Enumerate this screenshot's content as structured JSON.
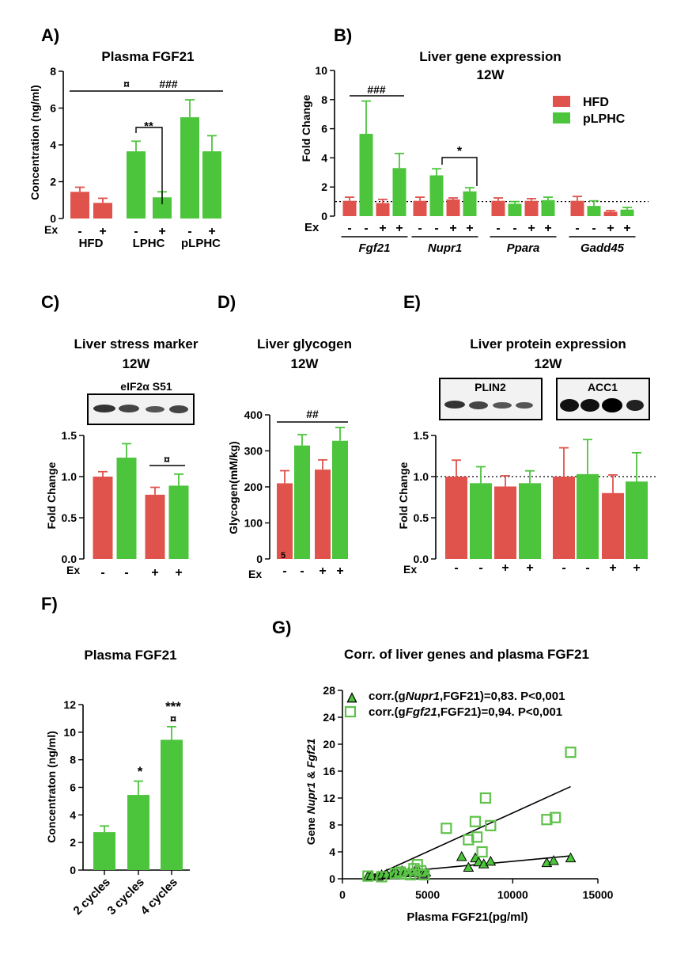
{
  "colors": {
    "hfd": "#e0524c",
    "plphc": "#4cc43c",
    "plphc_edge": "#3fa832",
    "axis": "#000000",
    "scatter_open": "#5fc24a"
  },
  "legend_b": [
    "HFD",
    "pLPHC"
  ],
  "chart_data": [
    {
      "panel": "A)",
      "type": "bar",
      "title": "Plasma FGF21",
      "ylabel": "Concentration (ng/ml)",
      "ylim": [
        0,
        8
      ],
      "yticks": [
        "0",
        "2",
        "4",
        "6",
        "8"
      ],
      "ex_label": "Ex",
      "values": [
        1.45,
        0.85,
        3.65,
        1.15,
        5.5,
        3.65
      ],
      "errors": [
        0.25,
        0.25,
        0.55,
        0.3,
        0.95,
        0.85
      ],
      "colors": [
        "hfd",
        "hfd",
        "plphc",
        "plphc",
        "plphc",
        "plphc"
      ],
      "ex": [
        "-",
        "+",
        "-",
        "+",
        "-",
        "+"
      ],
      "groups": [
        "HFD",
        "LPHC",
        "pLPHC"
      ],
      "annotations": [
        "¤",
        "###",
        "**"
      ]
    },
    {
      "panel": "B)",
      "type": "bar",
      "title": "Liver gene expression",
      "subtitle": "12W",
      "ylabel": "Fold Change",
      "ylim": [
        0,
        10
      ],
      "yticks": [
        "0",
        "2",
        "4",
        "6",
        "8",
        "10"
      ],
      "ex_label": "Ex",
      "genes": [
        "Fgf21",
        "Nupr1",
        "Ppara",
        "Gadd45"
      ],
      "ex": [
        "-",
        "-",
        "+",
        "+"
      ],
      "series_order": [
        "HFD",
        "pLPHC",
        "HFD",
        "pLPHC"
      ],
      "values": [
        [
          1.05,
          5.65,
          0.9,
          3.3
        ],
        [
          1.05,
          2.8,
          1.15,
          1.7
        ],
        [
          1.05,
          0.85,
          1.05,
          1.1
        ],
        [
          1.05,
          0.7,
          0.3,
          0.45
        ]
      ],
      "errors": [
        [
          0.25,
          2.25,
          0.25,
          1.0
        ],
        [
          0.25,
          0.45,
          0.1,
          0.25
        ],
        [
          0.2,
          0.15,
          0.15,
          0.2
        ],
        [
          0.3,
          0.35,
          0.08,
          0.15
        ]
      ],
      "reference_line": 1,
      "annotations": [
        "###",
        "*"
      ]
    },
    {
      "panel": "C)",
      "type": "bar",
      "title": "Liver stress marker",
      "subtitle": "12W",
      "blot_label": "eIF2α  S51",
      "ylabel": "Fold Change",
      "ylim": [
        0,
        1.5
      ],
      "yticks": [
        "0.0",
        "0.5",
        "1.0",
        "1.5"
      ],
      "ex_label": "Ex",
      "values": [
        1.0,
        1.23,
        0.78,
        0.89
      ],
      "errors": [
        0.06,
        0.17,
        0.09,
        0.14
      ],
      "colors": [
        "hfd",
        "plphc",
        "hfd",
        "plphc"
      ],
      "ex": [
        "-",
        "-",
        "+",
        "+"
      ],
      "annotations": [
        "¤"
      ]
    },
    {
      "panel": "D)",
      "type": "bar",
      "title": "Liver glycogen",
      "subtitle": "12W",
      "ylabel": "Glycogen(mM/kg)",
      "ylim": [
        0,
        400
      ],
      "yticks": [
        "0",
        "100",
        "200",
        "300",
        "400"
      ],
      "ex_label": "Ex",
      "values": [
        210,
        315,
        248,
        328
      ],
      "errors": [
        35,
        30,
        27,
        37
      ],
      "colors": [
        "hfd",
        "plphc",
        "hfd",
        "plphc"
      ],
      "ex": [
        "-",
        "-",
        "+",
        "+"
      ],
      "annotations": [
        "##",
        "5"
      ]
    },
    {
      "panel": "E)",
      "type": "bar",
      "title": "Liver protein expression",
      "subtitle": "12W",
      "blot_labels": [
        "PLIN2",
        "ACC1"
      ],
      "ylabel": "Fold Change",
      "ylim": [
        0,
        1.5
      ],
      "yticks": [
        "0.0",
        "0.5",
        "1.0",
        "1.5"
      ],
      "ex_label": "Ex",
      "values": [
        [
          1.0,
          0.92,
          0.88,
          0.92
        ],
        [
          1.0,
          1.03,
          0.8,
          0.94
        ]
      ],
      "errors": [
        [
          0.2,
          0.2,
          0.13,
          0.15
        ],
        [
          0.35,
          0.42,
          0.22,
          0.35
        ]
      ],
      "colors": [
        "hfd",
        "plphc",
        "hfd",
        "plphc"
      ],
      "ex": [
        "-",
        "-",
        "+",
        "+"
      ],
      "reference_line": 1
    },
    {
      "panel": "F)",
      "type": "bar",
      "title": "Plasma FGF21",
      "ylabel": "Concentraton (ng/ml)",
      "ylim": [
        0,
        12
      ],
      "yticks": [
        "0",
        "2",
        "4",
        "6",
        "8",
        "10",
        "12"
      ],
      "categories": [
        "2 cycles",
        "3 cycles",
        "4 cycles"
      ],
      "values": [
        2.75,
        5.45,
        9.45
      ],
      "errors": [
        0.45,
        1.0,
        0.95
      ],
      "annotations": [
        "*",
        "***",
        "¤"
      ]
    },
    {
      "panel": "G)",
      "type": "scatter",
      "title": "Corr. of liver genes and plasma FGF21",
      "xlabel": "Plasma FGF21(pg/ml)",
      "ylabel_parts": [
        "Gene ",
        "Nupr1",
        " & ",
        "Fgf21"
      ],
      "xlim": [
        0,
        15000
      ],
      "ylim": [
        0,
        28
      ],
      "xticks": [
        "0",
        "5000",
        "10000",
        "15000"
      ],
      "yticks": [
        "0",
        "4",
        "8",
        "12",
        "16",
        "20",
        "24",
        "28"
      ],
      "series": [
        {
          "name": "Nupr1",
          "marker": "triangle",
          "legend_parts": [
            "corr.(g",
            "Nupr1",
            ",FGF21)=0,83. P<0,001"
          ],
          "points": [
            [
              1500,
              0.4
            ],
            [
              1700,
              0.5
            ],
            [
              2100,
              0.4
            ],
            [
              2300,
              0.6
            ],
            [
              2600,
              0.7
            ],
            [
              3000,
              0.9
            ],
            [
              3200,
              0.8
            ],
            [
              3500,
              1.2
            ],
            [
              3700,
              0.9
            ],
            [
              3900,
              1.0
            ],
            [
              4100,
              0.9
            ],
            [
              4300,
              1.3
            ],
            [
              4500,
              1.1
            ],
            [
              4700,
              0.8
            ],
            [
              4900,
              1.0
            ],
            [
              7000,
              3.3
            ],
            [
              7400,
              1.7
            ],
            [
              7800,
              3.1
            ],
            [
              8000,
              2.5
            ],
            [
              8300,
              2.2
            ],
            [
              8700,
              2.6
            ],
            [
              12000,
              2.4
            ],
            [
              12400,
              2.7
            ],
            [
              13400,
              3.1
            ]
          ],
          "fit": [
            [
              1500,
              0.6
            ],
            [
              13400,
              3.4
            ]
          ]
        },
        {
          "name": "Fgf21",
          "marker": "square-open",
          "legend_parts": [
            "corr.(g",
            "Fgf21",
            ",FGF21)=0,94. P<0,001"
          ],
          "points": [
            [
              1500,
              0.4
            ],
            [
              2300,
              0.3
            ],
            [
              3100,
              0.8
            ],
            [
              3400,
              1.0
            ],
            [
              3700,
              0.7
            ],
            [
              4000,
              0.6
            ],
            [
              4200,
              1.5
            ],
            [
              4400,
              2.1
            ],
            [
              4600,
              1.2
            ],
            [
              4800,
              0.6
            ],
            [
              6100,
              7.5
            ],
            [
              7400,
              5.8
            ],
            [
              7800,
              8.5
            ],
            [
              7900,
              6.2
            ],
            [
              8200,
              4.0
            ],
            [
              8400,
              12.0
            ],
            [
              8700,
              7.9
            ],
            [
              12000,
              8.8
            ],
            [
              12500,
              9.1
            ],
            [
              13400,
              18.8
            ]
          ],
          "fit": [
            [
              1500,
              0.0
            ],
            [
              13400,
              13.7
            ]
          ]
        }
      ]
    }
  ]
}
